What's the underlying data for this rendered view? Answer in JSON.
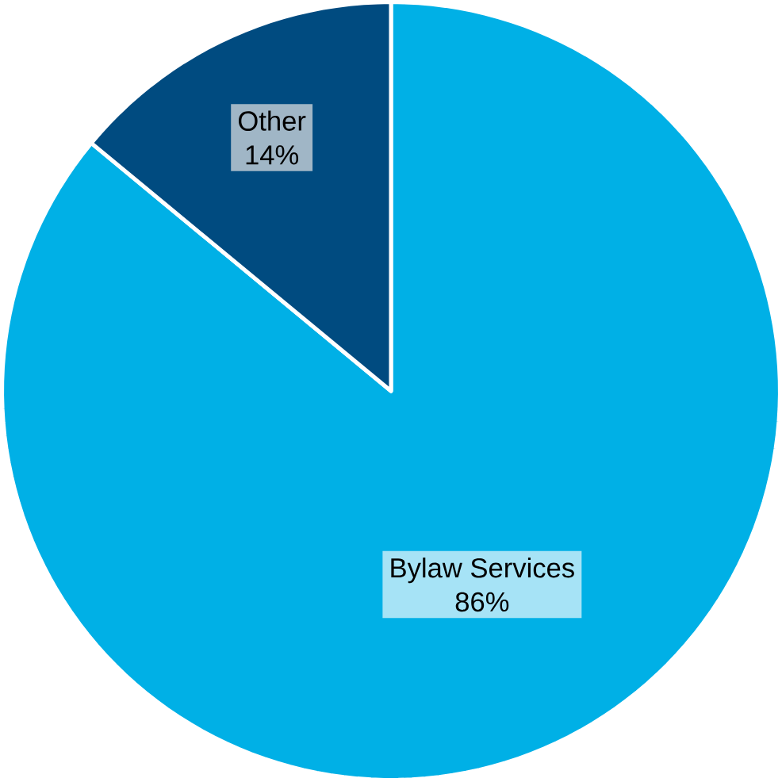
{
  "chart_data": {
    "type": "pie",
    "categories": [
      "Bylaw Services",
      "Other"
    ],
    "values": [
      86,
      14
    ],
    "colors": [
      "#00b0e6",
      "#004b80"
    ],
    "value_labels": [
      "86%",
      "14%"
    ]
  }
}
